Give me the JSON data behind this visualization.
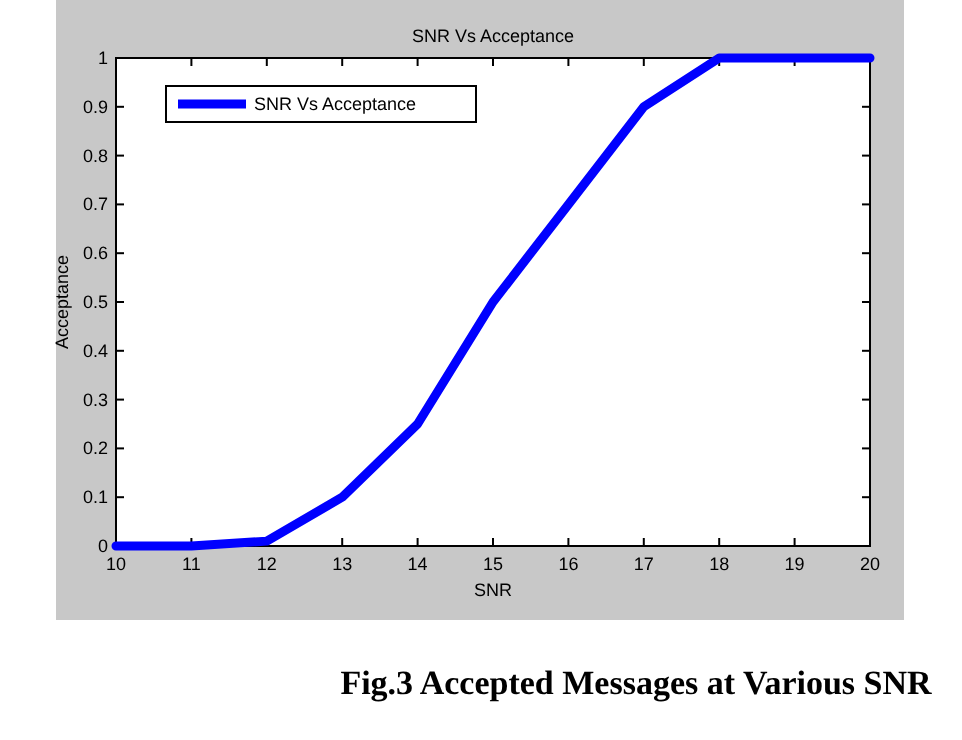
{
  "chart_data": {
    "type": "line",
    "title": "SNR Vs Acceptance",
    "xlabel": "SNR",
    "ylabel": "Acceptance",
    "x": [
      10,
      11,
      12,
      13,
      14,
      15,
      16,
      17,
      18,
      19,
      20
    ],
    "series": [
      {
        "name": "SNR Vs Acceptance",
        "color": "#0000ff",
        "values": [
          0,
          0,
          0.01,
          0.1,
          0.25,
          0.5,
          0.7,
          0.9,
          1,
          1,
          1
        ]
      }
    ],
    "xlim": [
      10,
      20
    ],
    "xticks": [
      10,
      11,
      12,
      13,
      14,
      15,
      16,
      17,
      18,
      19,
      20
    ],
    "ylim": [
      0,
      1
    ],
    "yticks": [
      0,
      0.1,
      0.2,
      0.3,
      0.4,
      0.5,
      0.6,
      0.7,
      0.8,
      0.9,
      1
    ],
    "grid": false,
    "legend": "top left",
    "marker": "none",
    "line_style": "solid",
    "annotations": [
      "Fig.3 Accepted Messages at Various SNR"
    ]
  }
}
